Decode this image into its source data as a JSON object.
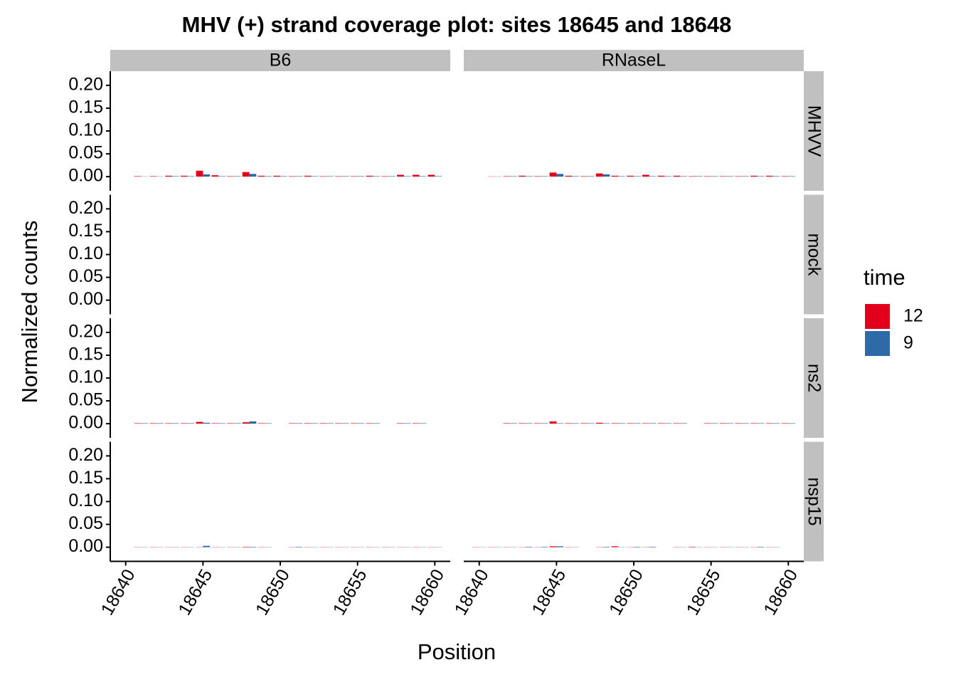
{
  "chart_data": {
    "type": "bar",
    "title": "MHV (+) strand coverage plot: sites 18645 and 18648",
    "xlabel": "Position",
    "ylabel": "Normalized counts",
    "legend": {
      "title": "time",
      "entries": [
        {
          "name": "12",
          "color": "#e3001b"
        },
        {
          "name": "9",
          "color": "#2f6aa8"
        }
      ]
    },
    "x": [
      18640,
      18641,
      18642,
      18643,
      18644,
      18645,
      18646,
      18647,
      18648,
      18649,
      18650,
      18651,
      18652,
      18653,
      18654,
      18655,
      18656,
      18657,
      18658,
      18659,
      18660
    ],
    "xlim": [
      18639,
      18661
    ],
    "xticks": [
      18640,
      18645,
      18650,
      18655,
      18660
    ],
    "ylim": [
      -0.031,
      0.231
    ],
    "yticks": [
      {
        "value": 0,
        "label": "0.00"
      },
      {
        "value": 0.05,
        "label": "0.05"
      },
      {
        "value": 0.1,
        "label": "0.10"
      },
      {
        "value": 0.15,
        "label": "0.15"
      },
      {
        "value": 0.2,
        "label": "0.20"
      }
    ],
    "rows": [
      "MHVV",
      "mock",
      "ns2",
      "nsp15"
    ],
    "columns": [
      {
        "name": "B6",
        "panels": [
          {
            "series": [
              {
                "values": [
                  null,
                  0.001,
                  0.001,
                  0.002,
                  0.002,
                  0.013,
                  0.003,
                  0.001,
                  0.01,
                  0.002,
                  0.002,
                  0.001,
                  0.002,
                  0.001,
                  0.001,
                  0.001,
                  0.002,
                  0.001,
                  0.004,
                  0.004,
                  0.004
                ]
              },
              {
                "values": [
                  null,
                  0.0005,
                  0.0005,
                  0.001,
                  0.001,
                  0.005,
                  0.001,
                  0.001,
                  0.006,
                  0.001,
                  0.001,
                  0.001,
                  0.001,
                  0.001,
                  0.001,
                  0.001,
                  0.001,
                  0.001,
                  0.001,
                  0.001,
                  0.001
                ]
              }
            ]
          },
          {
            "series": [
              {
                "values": [
                  0,
                  0,
                  0,
                  0,
                  0,
                  0,
                  0,
                  0,
                  0,
                  0,
                  0,
                  0,
                  0,
                  0,
                  0,
                  0,
                  0,
                  0,
                  0,
                  0,
                  0
                ]
              },
              {
                "values": [
                  0,
                  0,
                  0,
                  0,
                  0,
                  0,
                  0,
                  0,
                  0,
                  0,
                  0,
                  0,
                  0,
                  0,
                  0,
                  0,
                  0,
                  0,
                  0,
                  0,
                  0
                ]
              }
            ]
          },
          {
            "series": [
              {
                "values": [
                  null,
                  0.001,
                  0.001,
                  0.001,
                  0.001,
                  0.004,
                  0.001,
                  0.001,
                  0.003,
                  0.001,
                  null,
                  0.001,
                  0.001,
                  0.001,
                  0.001,
                  0.001,
                  0.001,
                  null,
                  0.001,
                  0.001,
                  null
                ]
              },
              {
                "values": [
                  null,
                  0.001,
                  0.001,
                  0.001,
                  0.001,
                  0.002,
                  0.001,
                  0.001,
                  0.005,
                  0.001,
                  null,
                  0.001,
                  0.001,
                  0.001,
                  0.001,
                  0.001,
                  0.001,
                  null,
                  0.001,
                  0.001,
                  null
                ]
              }
            ]
          },
          {
            "series": [
              {
                "values": [
                  null,
                  0.0005,
                  0.0005,
                  0.0005,
                  0.0005,
                  0.0005,
                  0.0005,
                  0.0005,
                  0.001,
                  0.0005,
                  null,
                  0.0005,
                  0.0005,
                  0.0005,
                  0.0005,
                  0.0005,
                  0.0005,
                  0.0005,
                  0.0005,
                  0.0005,
                  0.0005
                ]
              },
              {
                "values": [
                  null,
                  0.0005,
                  0.0005,
                  0.0005,
                  0.0005,
                  0.003,
                  0.0005,
                  0.0005,
                  0.001,
                  0.0005,
                  null,
                  0.001,
                  0.0005,
                  0.0005,
                  0.0005,
                  0.0005,
                  0.0005,
                  0.0005,
                  0.0005,
                  0.0005,
                  0.0005
                ]
              }
            ]
          }
        ]
      },
      {
        "name": "RNaseL",
        "panels": [
          {
            "series": [
              {
                "values": [
                  null,
                  0.0005,
                  0.001,
                  0.002,
                  0.001,
                  0.009,
                  0.002,
                  0.001,
                  0.007,
                  0.002,
                  0.002,
                  0.004,
                  0.002,
                  0.002,
                  0.001,
                  0.001,
                  0.001,
                  0.001,
                  0.002,
                  0.002,
                  0.001
                ]
              },
              {
                "values": [
                  null,
                  0.0005,
                  0.001,
                  0.001,
                  0.001,
                  0.006,
                  0.001,
                  0.001,
                  0.005,
                  0.001,
                  0.001,
                  0.001,
                  0.001,
                  0.001,
                  0.001,
                  0.001,
                  0.001,
                  0.001,
                  0.001,
                  0.001,
                  0.001
                ]
              }
            ]
          },
          {
            "series": [
              {
                "values": [
                  0,
                  0,
                  0,
                  0,
                  0,
                  0,
                  0,
                  0,
                  0,
                  0,
                  0,
                  0,
                  0,
                  0,
                  0,
                  0,
                  0,
                  0,
                  0,
                  0,
                  0
                ]
              },
              {
                "values": [
                  0,
                  0,
                  0,
                  0,
                  0,
                  0,
                  0,
                  0,
                  0,
                  0,
                  0,
                  0,
                  0,
                  0,
                  0,
                  0,
                  0,
                  0,
                  0,
                  0,
                  0
                ]
              }
            ]
          },
          {
            "series": [
              {
                "values": [
                  null,
                  null,
                  0.001,
                  0.001,
                  0.001,
                  0.005,
                  0.001,
                  0.001,
                  0.002,
                  0.001,
                  0.001,
                  0.001,
                  0.001,
                  0.001,
                  null,
                  0.001,
                  0.001,
                  0.001,
                  0.001,
                  0.001,
                  0.001
                ]
              },
              {
                "values": [
                  null,
                  null,
                  0.001,
                  0.001,
                  0.001,
                  0.001,
                  0.001,
                  0.001,
                  0.001,
                  0.001,
                  0.001,
                  0.001,
                  0.001,
                  0.001,
                  null,
                  0.001,
                  0.001,
                  0.001,
                  0.001,
                  0.001,
                  0.001
                ]
              }
            ]
          },
          {
            "series": [
              {
                "values": [
                  0.0005,
                  0.0005,
                  0.0005,
                  0.0005,
                  0.0005,
                  0.002,
                  0.0005,
                  null,
                  0.0005,
                  0.002,
                  0.0005,
                  0.0005,
                  null,
                  0.0005,
                  0.001,
                  0.0005,
                  0.0005,
                  0.0005,
                  0.0005,
                  0.0005,
                  null
                ]
              },
              {
                "values": [
                  0.0005,
                  0.0005,
                  0.0005,
                  0.001,
                  0.001,
                  0.002,
                  0.0005,
                  null,
                  0.001,
                  0.0005,
                  0.001,
                  0.001,
                  null,
                  0.0005,
                  0.0005,
                  0.0005,
                  0.0005,
                  0.0005,
                  0.001,
                  0.0005,
                  null
                ]
              }
            ]
          }
        ]
      }
    ]
  }
}
